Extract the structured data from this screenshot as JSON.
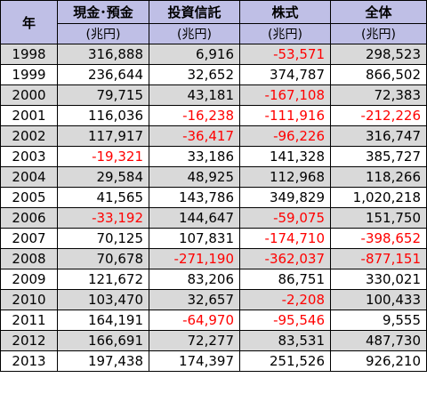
{
  "headers": {
    "year": "年",
    "cols": [
      "現金･預金",
      "投資信託",
      "株式",
      "全体"
    ],
    "unit": "(兆円)"
  },
  "rows": [
    {
      "year": "1998",
      "values": [
        "316,888",
        "6,916",
        "-53,571",
        "298,523"
      ]
    },
    {
      "year": "1999",
      "values": [
        "236,644",
        "32,652",
        "374,787",
        "866,502"
      ]
    },
    {
      "year": "2000",
      "values": [
        "79,715",
        "43,181",
        "-167,108",
        "72,383"
      ]
    },
    {
      "year": "2001",
      "values": [
        "116,036",
        "-16,238",
        "-111,916",
        "-212,226"
      ]
    },
    {
      "year": "2002",
      "values": [
        "117,917",
        "-36,417",
        "-96,226",
        "316,747"
      ]
    },
    {
      "year": "2003",
      "values": [
        "-19,321",
        "33,186",
        "141,328",
        "385,727"
      ]
    },
    {
      "year": "2004",
      "values": [
        "29,584",
        "48,925",
        "112,968",
        "118,266"
      ]
    },
    {
      "year": "2005",
      "values": [
        "41,565",
        "143,786",
        "349,829",
        "1,020,218"
      ]
    },
    {
      "year": "2006",
      "values": [
        "-33,192",
        "144,647",
        "-59,075",
        "151,750"
      ]
    },
    {
      "year": "2007",
      "values": [
        "70,125",
        "107,831",
        "-174,710",
        "-398,652"
      ]
    },
    {
      "year": "2008",
      "values": [
        "70,678",
        "-271,190",
        "-362,037",
        "-877,151"
      ]
    },
    {
      "year": "2009",
      "values": [
        "121,672",
        "83,206",
        "86,751",
        "330,021"
      ]
    },
    {
      "year": "2010",
      "values": [
        "103,470",
        "32,657",
        "-2,208",
        "100,433"
      ]
    },
    {
      "year": "2011",
      "values": [
        "164,191",
        "-64,970",
        "-95,546",
        "9,555"
      ]
    },
    {
      "year": "2012",
      "values": [
        "166,691",
        "72,277",
        "83,531",
        "487,730"
      ]
    },
    {
      "year": "2013",
      "values": [
        "197,438",
        "174,397",
        "251,526",
        "926,210"
      ]
    }
  ],
  "colors": {
    "header_bg": "#bfbfe6",
    "shaded_row_bg": "#d9d9d9",
    "negative_text": "#ff0000"
  }
}
